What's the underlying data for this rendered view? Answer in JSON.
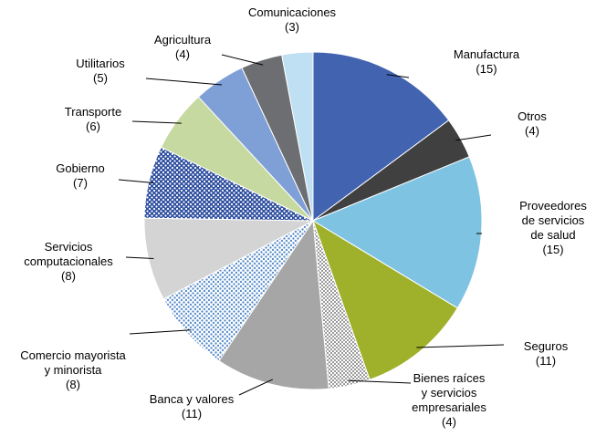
{
  "chart_data": {
    "type": "pie",
    "categories": [
      "Manufactura",
      "Otros",
      "Proveedores\nde servicios\nde salud",
      "Seguros",
      "Bienes raíces\ny servicios\nempresariales",
      "Banca y valores",
      "Comercio mayorista\ny minorista",
      "Servicios\ncomputacionales",
      "Gobierno",
      "Transporte",
      "Utilitarios",
      "Agricultura",
      "Comunicaciones"
    ],
    "values": [
      15,
      4,
      15,
      11,
      4,
      11,
      8,
      8,
      7,
      6,
      5,
      4,
      3
    ],
    "value_labels": [
      "(15)",
      "(4)",
      "(15)",
      "(11)",
      "(4)",
      "(11)",
      "(8)",
      "(8)",
      "(7)",
      "(6)",
      "(5)",
      "(4)",
      "(3)"
    ],
    "colors": [
      "#4263b0",
      "#404040",
      "#7fc3e3",
      "#9fb02a",
      "#ffffff",
      "#a6a6a6",
      "#ffffff",
      "#d4d4d4",
      "#2f4fa0",
      "#c6d9a0",
      "#7f9fd7",
      "#6d6e71",
      "#bfe0f2"
    ],
    "patterns": [
      null,
      null,
      null,
      null,
      "checker",
      null,
      "dots-blue",
      null,
      "dots-white",
      null,
      null,
      null,
      null
    ]
  }
}
